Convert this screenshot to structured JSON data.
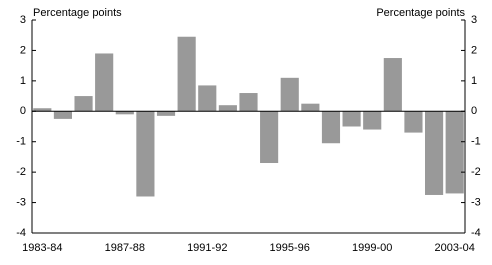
{
  "chart_data": {
    "type": "bar",
    "y_label": "Percentage points",
    "y2_label": "Percentage points",
    "categories": [
      "1983-84",
      null,
      null,
      null,
      "1987-88",
      null,
      null,
      null,
      "1991-92",
      null,
      null,
      null,
      "1995-96",
      null,
      null,
      null,
      "1999-00",
      null,
      null,
      null,
      "2003-04"
    ],
    "values": [
      0.1,
      -0.25,
      0.5,
      1.9,
      -0.1,
      -2.8,
      -0.15,
      2.45,
      0.85,
      0.2,
      0.6,
      -1.7,
      1.1,
      0.25,
      -1.05,
      -0.5,
      -0.6,
      1.75,
      -0.7,
      -2.75,
      -2.7
    ],
    "color": "#999999",
    "ylim": [
      -4,
      3
    ],
    "yticks": [
      -4,
      -3,
      -2,
      -1,
      0,
      1,
      2,
      3
    ],
    "y2lim": [
      -4,
      3
    ],
    "y2ticks": [
      -4,
      -3,
      -2,
      -1,
      0,
      1,
      2,
      3
    ],
    "grid": false
  }
}
